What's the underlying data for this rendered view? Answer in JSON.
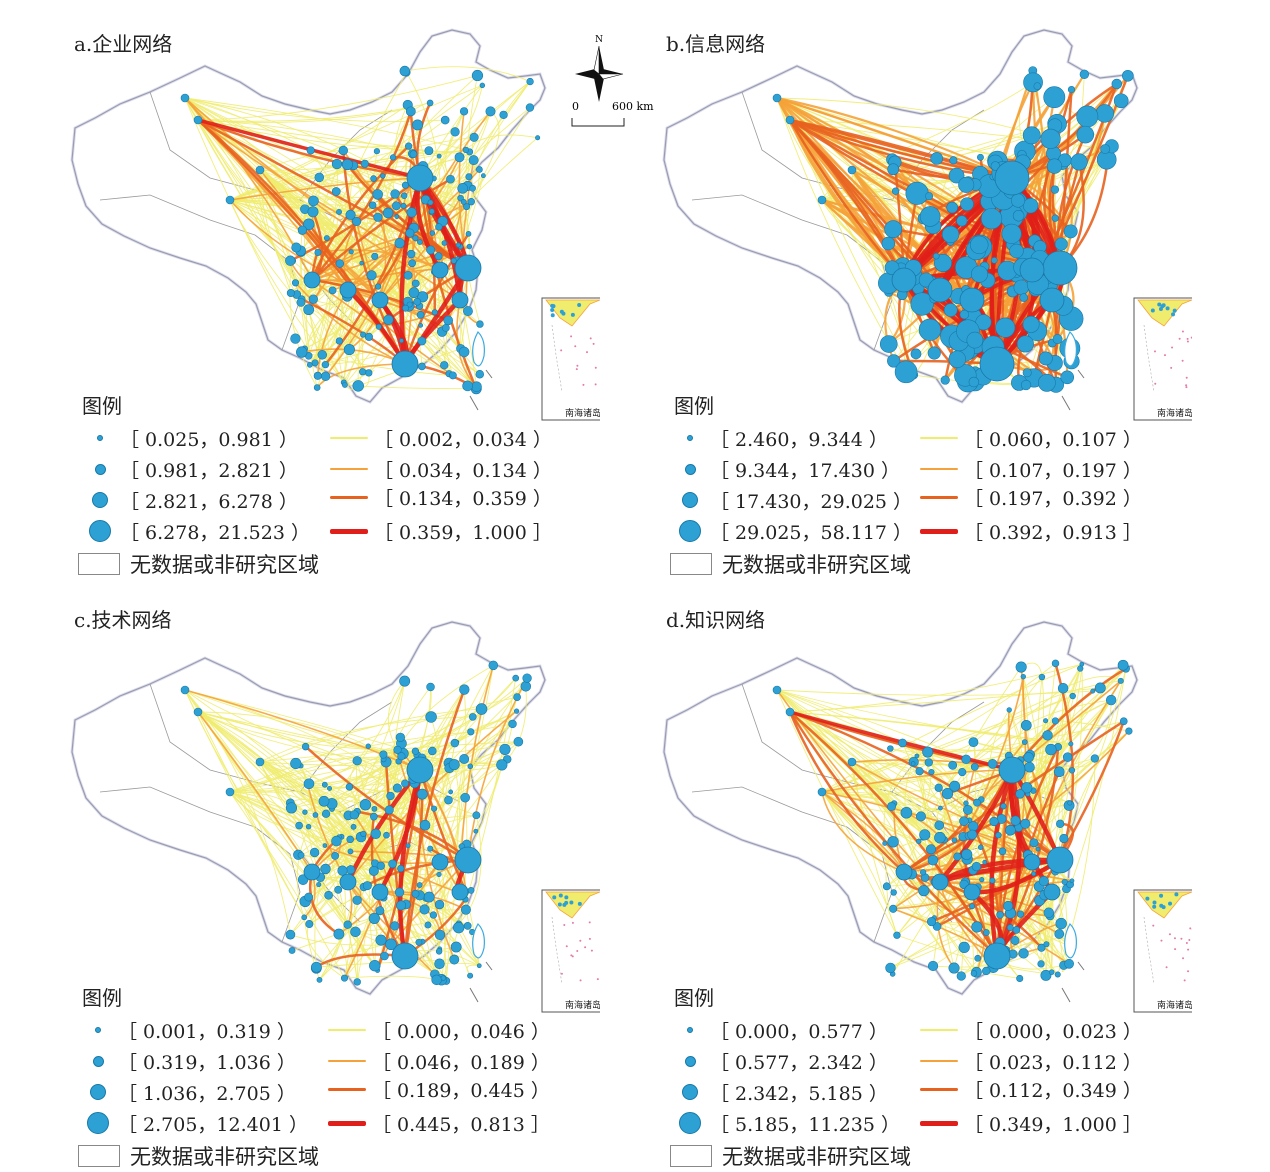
{
  "compass": {
    "north_label": "N",
    "scale_start": "0",
    "scale_end": "600 km"
  },
  "inset_label": "南海诸岛",
  "legend_title": "图例",
  "nodata_label": "无数据或非研究区域",
  "colors": {
    "node": "#2ea1d4",
    "line_1": "#f0ec6e",
    "line_2": "#f5a23a",
    "line_3": "#e8621f",
    "line_4": "#e01f1a",
    "border": "#7a7a7a",
    "taiwan": "#3aa9e0",
    "islands": "#e47aa8"
  },
  "panels": [
    {
      "title": "a.企业网络",
      "nodes": [
        "［ 0.025，0.981 ）",
        "［ 0.981，2.821 ）",
        "［ 2.821，6.278 ）",
        "［ 6.278，21.523 ）"
      ],
      "lines": [
        "［ 0.002，0.034 ）",
        "［ 0.034，0.134 ）",
        "［ 0.134，0.359 ）",
        "［ 0.359，1.000 ］"
      ]
    },
    {
      "title": "b.信息网络",
      "nodes": [
        "［ 2.460，9.344 ）",
        "［ 9.344，17.430 ）",
        "［ 17.430，29.025 ）",
        "［ 29.025，58.117 ）"
      ],
      "lines": [
        "［ 0.060，0.107 ）",
        "［ 0.107，0.197 ）",
        "［ 0.197，0.392 ）",
        "［ 0.392，0.913 ］"
      ]
    },
    {
      "title": "c.技术网络",
      "nodes": [
        "［ 0.001，0.319 ）",
        "［ 0.319，1.036 ）",
        "［ 1.036，2.705 ）",
        "［ 2.705，12.401 ）"
      ],
      "lines": [
        "［ 0.000，0.046 ）",
        "［ 0.046，0.189 ）",
        "［ 0.189，0.445 ）",
        "［ 0.445，0.813 ］"
      ]
    },
    {
      "title": "d.知识网络",
      "nodes": [
        "［ 0.000，0.577 ）",
        "［ 0.577，2.342 ）",
        "［ 2.342，5.185 ）",
        "［ 5.185，11.235 ）"
      ],
      "lines": [
        "［ 0.000，0.023 ）",
        "［ 0.023，0.112 ）",
        "［ 0.112，0.349 ）",
        "［ 0.349，1.000 ］"
      ]
    }
  ]
}
